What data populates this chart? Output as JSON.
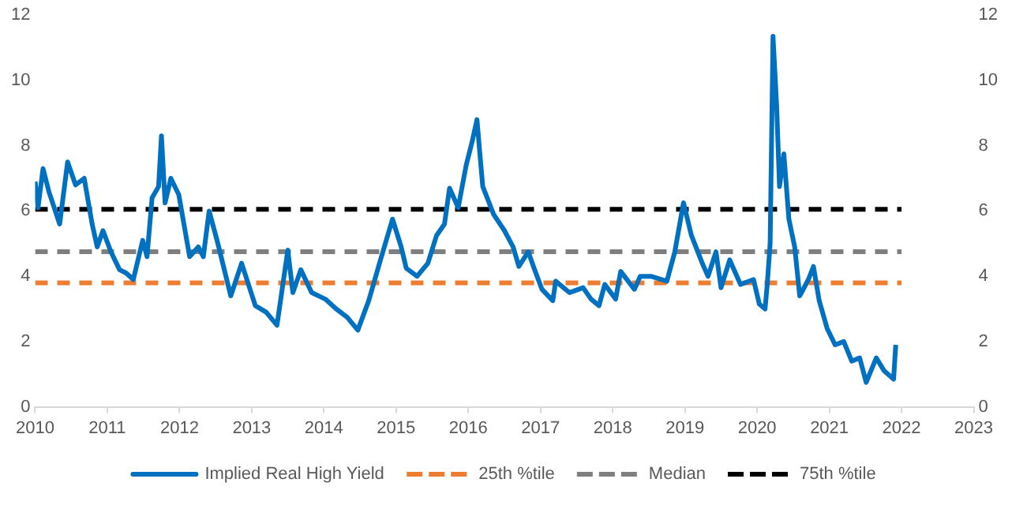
{
  "chart_data": {
    "type": "line",
    "xlim": [
      2010,
      2023
    ],
    "xticks": [
      2010,
      2011,
      2012,
      2013,
      2014,
      2015,
      2016,
      2017,
      2018,
      2019,
      2020,
      2021,
      2022,
      2023
    ],
    "ylim": [
      0,
      12
    ],
    "yticks": [
      0,
      2,
      4,
      6,
      8,
      10,
      12
    ],
    "y2lim": [
      0,
      12
    ],
    "y2ticks": [
      0,
      2,
      4,
      6,
      8,
      10,
      12
    ],
    "grid": false,
    "legend": "bottom",
    "marker": "none",
    "series": [
      {
        "name": "Implied Real High Yield",
        "color": "#0070c0",
        "line_style": "solid",
        "x": [
          2010.0,
          2010.04,
          2010.11,
          2010.19,
          2010.34,
          2010.45,
          2010.56,
          2010.68,
          2010.79,
          2010.86,
          2010.94,
          2011.05,
          2011.17,
          2011.26,
          2011.36,
          2011.49,
          2011.55,
          2011.62,
          2011.71,
          2011.75,
          2011.8,
          2011.88,
          2011.99,
          2012.14,
          2012.26,
          2012.33,
          2012.41,
          2012.52,
          2012.71,
          2012.86,
          2013.05,
          2013.2,
          2013.35,
          2013.5,
          2013.57,
          2013.68,
          2013.83,
          2014.02,
          2014.17,
          2014.32,
          2014.47,
          2014.62,
          2014.77,
          2014.95,
          2015.07,
          2015.14,
          2015.29,
          2015.44,
          2015.56,
          2015.67,
          2015.74,
          2015.86,
          2015.97,
          2016.05,
          2016.12,
          2016.16,
          2016.2,
          2016.35,
          2016.5,
          2016.62,
          2016.7,
          2016.83,
          2016.91,
          2017.02,
          2017.17,
          2017.21,
          2017.4,
          2017.59,
          2017.7,
          2017.81,
          2017.89,
          2018.04,
          2018.11,
          2018.3,
          2018.38,
          2018.53,
          2018.75,
          2018.86,
          2018.98,
          2019.09,
          2019.24,
          2019.32,
          2019.43,
          2019.5,
          2019.62,
          2019.77,
          2019.95,
          2020.03,
          2020.11,
          2020.14,
          2020.18,
          2020.22,
          2020.27,
          2020.31,
          2020.37,
          2020.44,
          2020.52,
          2020.59,
          2020.71,
          2020.78,
          2020.86,
          2020.97,
          2021.08,
          2021.2,
          2021.31,
          2021.42,
          2021.51,
          2021.65,
          2021.76,
          2021.89,
          2021.92
        ],
        "values": [
          6.9,
          6.1,
          7.3,
          6.6,
          5.6,
          7.5,
          6.8,
          7.0,
          5.6,
          4.9,
          5.4,
          4.75,
          4.2,
          4.1,
          3.9,
          5.1,
          4.6,
          6.4,
          6.75,
          8.3,
          6.25,
          7.0,
          6.5,
          4.6,
          4.9,
          4.6,
          6.0,
          5.1,
          3.4,
          4.4,
          3.1,
          2.9,
          2.5,
          4.8,
          3.5,
          4.2,
          3.5,
          3.3,
          3.0,
          2.75,
          2.35,
          3.25,
          4.4,
          5.75,
          4.9,
          4.25,
          4.0,
          4.4,
          5.25,
          5.6,
          6.7,
          6.1,
          7.4,
          8.1,
          8.8,
          7.75,
          6.75,
          5.9,
          5.4,
          4.9,
          4.3,
          4.75,
          4.25,
          3.6,
          3.25,
          3.85,
          3.5,
          3.65,
          3.3,
          3.1,
          3.75,
          3.3,
          4.15,
          3.6,
          4.0,
          4.0,
          3.85,
          4.75,
          6.25,
          5.25,
          4.4,
          4.0,
          4.75,
          3.65,
          4.5,
          3.75,
          3.9,
          3.15,
          3.0,
          3.75,
          5.0,
          11.35,
          9.25,
          6.75,
          7.75,
          5.75,
          4.9,
          3.4,
          3.9,
          4.3,
          3.25,
          2.4,
          1.9,
          2.0,
          1.4,
          1.5,
          0.75,
          1.5,
          1.1,
          0.85,
          1.9
        ]
      },
      {
        "name": "25th %tile",
        "color": "#ed7d31",
        "line_style": "dashed",
        "x": [
          2010.0,
          2022.0
        ],
        "values": [
          3.8,
          3.8
        ]
      },
      {
        "name": "Median",
        "color": "#7f7f7f",
        "line_style": "dashed",
        "x": [
          2010.0,
          2022.0
        ],
        "values": [
          4.75,
          4.75
        ]
      },
      {
        "name": "75th %tile",
        "color": "#000000",
        "line_style": "dashed",
        "x": [
          2010.0,
          2022.0
        ],
        "values": [
          6.05,
          6.05
        ]
      }
    ]
  }
}
